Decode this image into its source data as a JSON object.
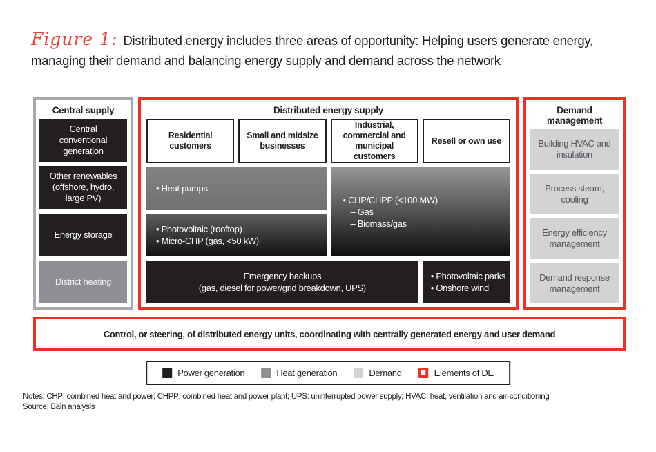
{
  "title": {
    "figure_label": "Figure 1:",
    "line1": "Distributed energy includes three areas of opportunity: Helping users generate energy,",
    "line2": "managing their demand and balancing energy supply and demand across the network"
  },
  "central_supply": {
    "header": "Central supply",
    "items": [
      {
        "label": "Central conventional generation",
        "type": "power-generation"
      },
      {
        "label": "Other renewables (offshore, hydro, large PV)",
        "type": "power-generation"
      },
      {
        "label": "Energy storage",
        "type": "power-generation"
      },
      {
        "label": "District heating",
        "type": "heat-generation"
      }
    ]
  },
  "distributed_energy_supply": {
    "header": "Distributed energy supply",
    "columns": [
      "Residential customers",
      "Small and midsize businesses",
      "Industrial, commercial and municipal customers",
      "Resell or own use"
    ],
    "cells": {
      "heat_pumps": {
        "lines": [
          "• Heat pumps"
        ],
        "type": "heat-generation"
      },
      "pv_rooftop": {
        "lines": [
          "• Photovoltaic (rooftop)",
          "• Micro-CHP (gas, <50 kW)"
        ],
        "type": "power-and-heat"
      },
      "chp": {
        "lines": [
          "• CHP/CHPP (<100 MW)",
          "– Gas",
          "– Biomass/gas"
        ],
        "type": "power-and-heat"
      },
      "emergency": {
        "lines": [
          "Emergency backups",
          "(gas, diesel for power/grid breakdown, UPS)"
        ],
        "type": "power-generation"
      },
      "pv_parks": {
        "lines": [
          "• Photovoltaic parks",
          "• Onshore wind"
        ],
        "type": "power-generation"
      }
    }
  },
  "demand_management": {
    "header": "Demand management",
    "items": [
      {
        "label": "Building HVAC and insulation",
        "type": "demand"
      },
      {
        "label": "Process steam, cooling",
        "type": "demand"
      },
      {
        "label": "Energy efficiency management",
        "type": "demand"
      },
      {
        "label": "Demand response management",
        "type": "demand"
      }
    ]
  },
  "control_bar": {
    "text": "Control, or steering, of distributed energy units, coordinating with centrally generated energy and user demand"
  },
  "legend": {
    "items": [
      {
        "label": "Power generation",
        "swatch": "power-generation"
      },
      {
        "label": "Heat generation",
        "swatch": "heat-generation"
      },
      {
        "label": "Demand",
        "swatch": "demand"
      },
      {
        "label": "Elements of DE",
        "swatch": "elements-of-de"
      }
    ]
  },
  "notes": {
    "line1": "Notes: CHP: combined heat and power; CHPP: combined heat and power plant; UPS: uninterrupted power supply; HVAC: heat, ventilation and air-conditioning",
    "line2": "Source: Bain analysis"
  },
  "colors": {
    "power_generation_black": "#231f20",
    "heat_generation_gray": "#8d8f92",
    "demand_light_gray": "#d1d3d4",
    "elements_of_de_red": "#ee3124",
    "figure_label_red": "#ef4337",
    "central_border_gray": "#a7a9ac"
  }
}
